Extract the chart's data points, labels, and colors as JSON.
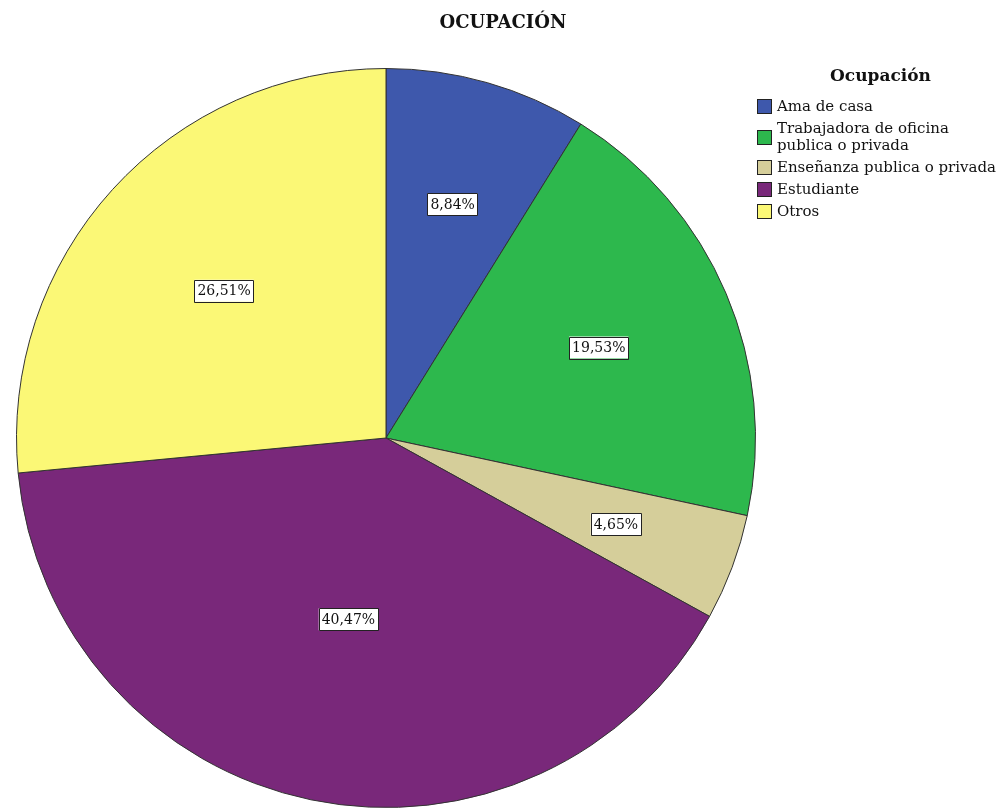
{
  "chart_data": {
    "type": "pie",
    "title": "OCUPACIÓN",
    "legend_title": "Ocupación",
    "categories": [
      "Ama de casa",
      "Trabajadora de oficina publica o privada",
      "Enseñanza publica o privada",
      "Estudiante",
      "Otros"
    ],
    "values": [
      8.84,
      19.53,
      4.65,
      40.47,
      26.51
    ],
    "colors": [
      "#3e58ac",
      "#2db84d",
      "#d5ce9a",
      "#79287a",
      "#fbf876"
    ],
    "value_labels": [
      "8,84%",
      "19,53%",
      "4,65%",
      "40,47%",
      "26,51%"
    ],
    "legend": "top right"
  }
}
